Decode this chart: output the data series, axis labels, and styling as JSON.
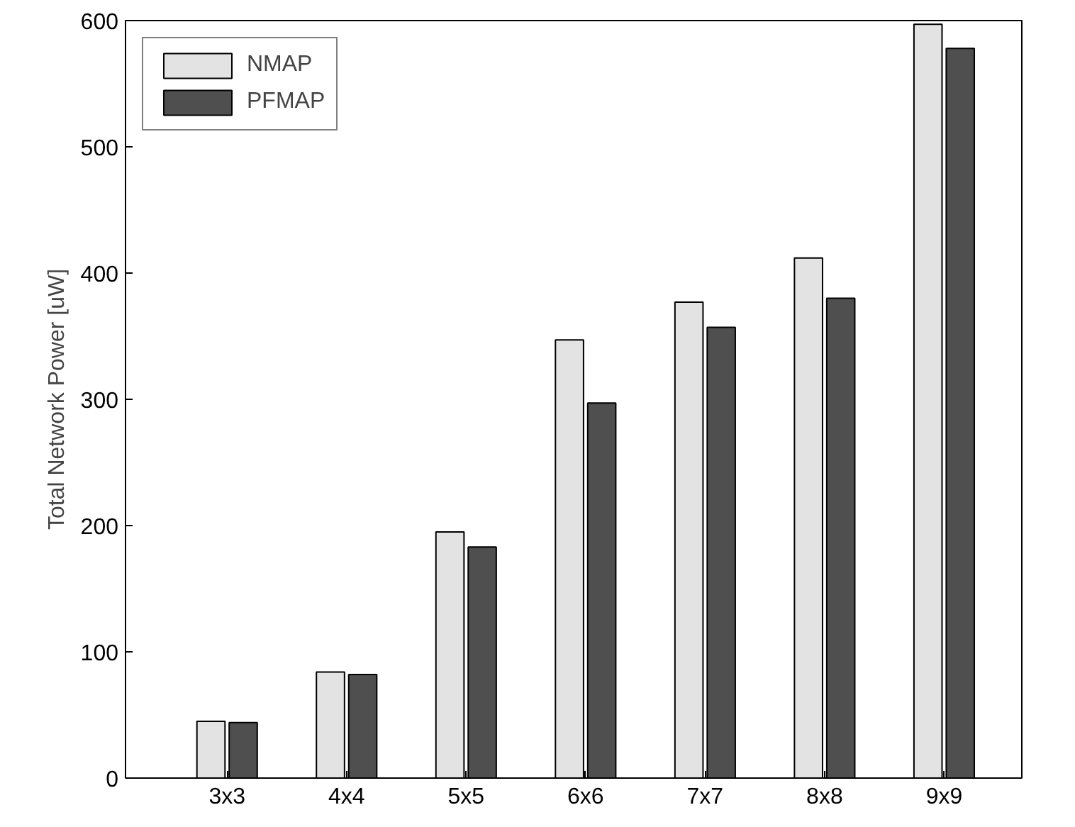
{
  "chart_data": {
    "type": "bar",
    "ylabel": "Total Network Power [uW]",
    "categories": [
      "3x3",
      "4x4",
      "5x5",
      "6x6",
      "7x7",
      "8x8",
      "9x9"
    ],
    "series": [
      {
        "name": "NMAP",
        "color": "#e3e3e3",
        "values": [
          45,
          84,
          195,
          347,
          377,
          412,
          597
        ]
      },
      {
        "name": "PFMAP",
        "color": "#4f4f4f",
        "values": [
          44,
          82,
          183,
          297,
          357,
          380,
          578
        ]
      }
    ],
    "ylim": [
      0,
      600
    ],
    "yticks": [
      0,
      100,
      200,
      300,
      400,
      500,
      600
    ],
    "grid": false,
    "legend": "top left"
  }
}
